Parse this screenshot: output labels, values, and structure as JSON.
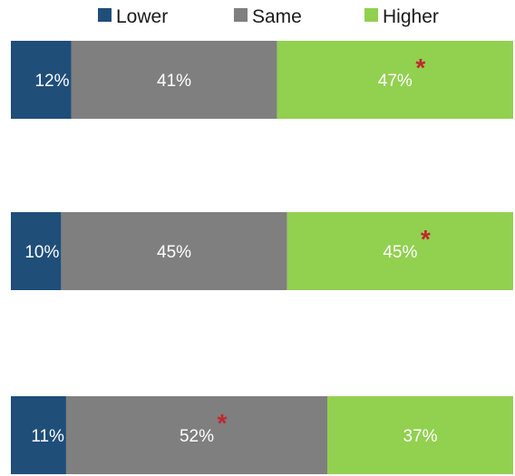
{
  "chart_data": {
    "type": "bar",
    "orientation": "horizontal",
    "stacked": "100%",
    "title": "",
    "xlabel": "",
    "ylabel": "",
    "legend_position": "top",
    "grid": false,
    "categories": [
      "",
      "",
      ""
    ],
    "series": [
      {
        "name": "Lower",
        "color": "#1f4e79",
        "values": [
          12,
          10,
          11
        ],
        "labels": [
          "12%",
          "10%",
          "11%"
        ]
      },
      {
        "name": "Same",
        "color": "#7f7f7f",
        "values": [
          41,
          45,
          52
        ],
        "labels": [
          "41%",
          "45%",
          "52%"
        ]
      },
      {
        "name": "Higher",
        "color": "#92d050",
        "values": [
          47,
          45,
          37
        ],
        "labels": [
          "47%",
          "45%",
          "37%"
        ]
      }
    ],
    "significance_markers": [
      {
        "bar": 0,
        "series": "Higher",
        "symbol": "*"
      },
      {
        "bar": 1,
        "series": "Higher",
        "symbol": "*"
      },
      {
        "bar": 2,
        "series": "Same",
        "symbol": "*"
      }
    ]
  }
}
